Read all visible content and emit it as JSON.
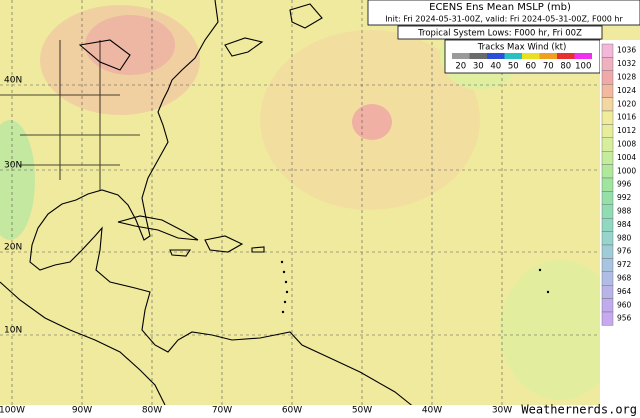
{
  "header": {
    "title": "ECENS Ens Mean MSLP (mb)",
    "subtitle": "Init: Fri 2024-05-31-00Z, valid: Fri 2024-05-31-00Z, F000 hr",
    "lows": "Tropical System Lows: F000 hr, Fri 00Z"
  },
  "wind_legend": {
    "title": "Tracks Max Wind (kt)",
    "items": [
      {
        "label": "20",
        "color": "#9a9a9a"
      },
      {
        "label": "30",
        "color": "#6b6b6b"
      },
      {
        "label": "40",
        "color": "#2b4fd8"
      },
      {
        "label": "50",
        "color": "#27c2c0"
      },
      {
        "label": "60",
        "color": "#e8e020"
      },
      {
        "label": "70",
        "color": "#f0a020"
      },
      {
        "label": "80",
        "color": "#e83030"
      },
      {
        "label": "100",
        "color": "#f030f0"
      }
    ]
  },
  "pressure_legend": {
    "items": [
      {
        "label": "1036",
        "color": "#f2b8d8"
      },
      {
        "label": "1032",
        "color": "#f0b0c0"
      },
      {
        "label": "1028",
        "color": "#f0a8a8"
      },
      {
        "label": "1024",
        "color": "#f2b8a0"
      },
      {
        "label": "1020",
        "color": "#f2d8a0"
      },
      {
        "label": "1016",
        "color": "#f0ec9c"
      },
      {
        "label": "1012",
        "color": "#e6ee9c"
      },
      {
        "label": "1008",
        "color": "#d8ee9c"
      },
      {
        "label": "1004",
        "color": "#c4ec9c"
      },
      {
        "label": "1000",
        "color": "#b0e89c"
      },
      {
        "label": "996",
        "color": "#a0e4a0"
      },
      {
        "label": "992",
        "color": "#94e0a8"
      },
      {
        "label": "988",
        "color": "#90dcb4"
      },
      {
        "label": "984",
        "color": "#90d8c0"
      },
      {
        "label": "980",
        "color": "#98d4cc"
      },
      {
        "label": "976",
        "color": "#a0ccd8"
      },
      {
        "label": "972",
        "color": "#a8c4e0"
      },
      {
        "label": "968",
        "color": "#b0bce4"
      },
      {
        "label": "964",
        "color": "#b8b4e8"
      },
      {
        "label": "960",
        "color": "#c0acec"
      },
      {
        "label": "956",
        "color": "#c8a8f0"
      }
    ]
  },
  "lat_labels": [
    "40N",
    "30N",
    "20N",
    "10N"
  ],
  "lon_labels": [
    "100W",
    "90W",
    "80W",
    "70W",
    "60W",
    "50W",
    "40W",
    "30W"
  ],
  "credit": "Weathernerds.org"
}
